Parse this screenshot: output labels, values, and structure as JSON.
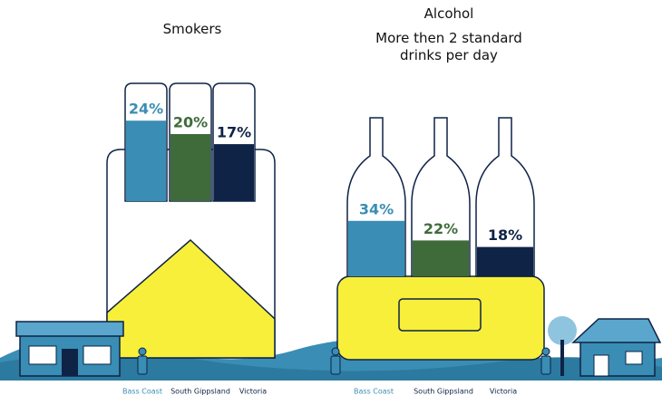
{
  "chart_data": [
    {
      "type": "bar",
      "title": "Smokers",
      "categories": [
        "Bass Coast",
        "South Gippsland",
        "Victoria"
      ],
      "values": [
        24,
        20,
        17
      ],
      "value_labels": [
        "24%",
        "20%",
        "17%"
      ],
      "colors": [
        "#3a8db4",
        "#3f6b3b",
        "#0e2346"
      ]
    },
    {
      "type": "bar",
      "title": "Alcohol",
      "subtitle": "More then 2 standard drinks per day",
      "categories": [
        "Bass Coast",
        "South Gippsland",
        "Victoria"
      ],
      "values": [
        34,
        22,
        18
      ],
      "value_labels": [
        "34%",
        "22%",
        "18%"
      ],
      "colors": [
        "#3a8db4",
        "#3f6b3b",
        "#0e2346"
      ]
    }
  ]
}
